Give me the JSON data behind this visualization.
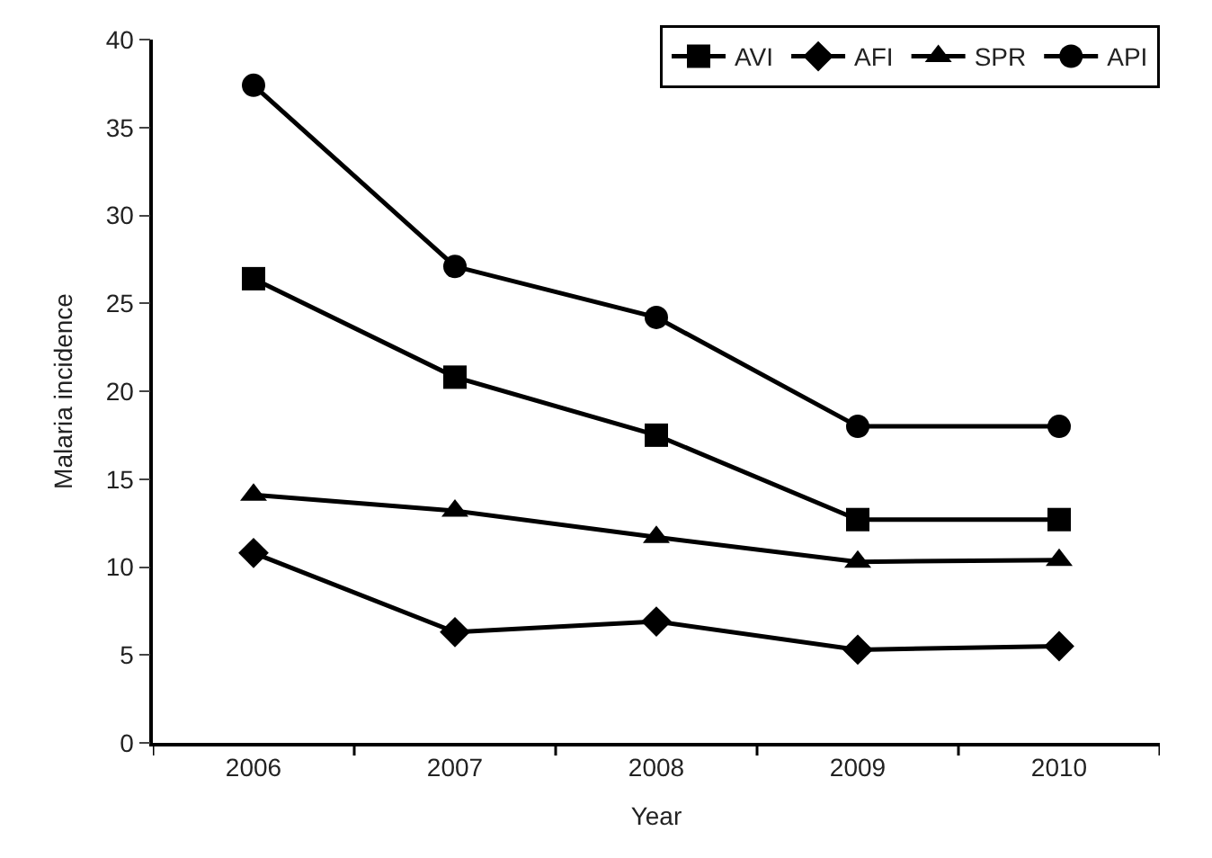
{
  "chart_data": {
    "type": "line",
    "xlabel": "Year",
    "ylabel": "Malaria incidence",
    "categories": [
      "2006",
      "2007",
      "2008",
      "2009",
      "2010"
    ],
    "ylim": [
      0,
      40
    ],
    "yticks": [
      0,
      5,
      10,
      15,
      20,
      25,
      30,
      35,
      40
    ],
    "legend": "top right",
    "line_style": "solid",
    "series": [
      {
        "name": "AVI",
        "color": "#000000",
        "marker": "square",
        "values": [
          26.4,
          20.8,
          17.5,
          12.7,
          12.7
        ]
      },
      {
        "name": "AFI",
        "color": "#000000",
        "marker": "diamond",
        "values": [
          10.8,
          6.3,
          6.9,
          5.3,
          5.5
        ]
      },
      {
        "name": "SPR",
        "color": "#000000",
        "marker": "triangle",
        "values": [
          14.1,
          13.2,
          11.7,
          10.3,
          10.4
        ]
      },
      {
        "name": "API",
        "color": "#000000",
        "marker": "circle",
        "values": [
          37.4,
          27.1,
          24.2,
          18.0,
          18.0
        ]
      }
    ]
  }
}
